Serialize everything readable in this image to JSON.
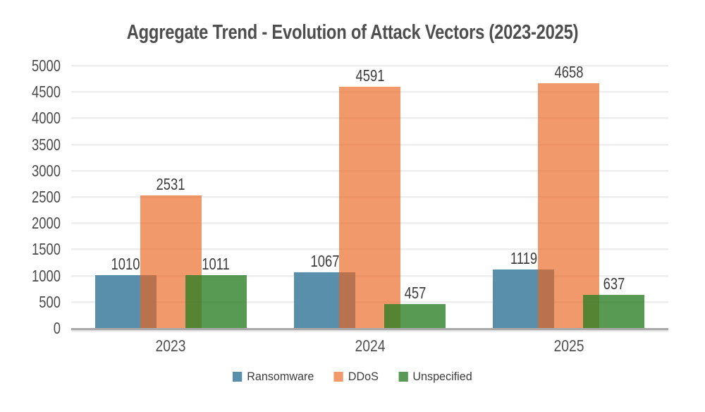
{
  "title": "Aggregate Trend - Evolution of Attack Vectors (2023-2025)",
  "chart_data": {
    "type": "bar",
    "title": "Aggregate Trend - Evolution of Attack Vectors (2023-2025)",
    "categories": [
      "2023",
      "2024",
      "2025"
    ],
    "series": [
      {
        "name": "Ransomware",
        "values": [
          1010,
          1067,
          1119
        ],
        "color_flat": "#5a8fac",
        "color_paint": "#5a8fac"
      },
      {
        "name": "DDoS",
        "values": [
          2531,
          4591,
          4658
        ],
        "color_flat": "#f29a6b",
        "color_paint": "rgba(235,98,27,0.65)"
      },
      {
        "name": "Unspecified",
        "values": [
          1011,
          457,
          637
        ],
        "color_flat": "#589a54",
        "color_paint": "rgba(41,126,36,0.78)"
      }
    ],
    "xlabel": "",
    "ylabel": "",
    "ylim": [
      0,
      5000
    ],
    "ytick_step": 500,
    "yticks": [
      "0",
      "500",
      "1000",
      "1500",
      "2000",
      "2500",
      "3000",
      "3500",
      "4000",
      "4500",
      "5000"
    ],
    "grid": "horizontal",
    "legend_position": "bottom",
    "data_labels": true,
    "bars_overlap_within_group": true
  },
  "legend": {
    "items": [
      {
        "label": "Ransomware",
        "color": "#5a8fac"
      },
      {
        "label": "DDoS",
        "color": "#f29a6b"
      },
      {
        "label": "Unspecified",
        "color": "#589a54"
      }
    ]
  },
  "colors": {
    "background": "#ffffff",
    "grid_line": "#ededed",
    "axis_line": "#a9a9a9",
    "title_text": "#4d4d4d",
    "tick_text": "#4a4a4a",
    "data_label_text": "#3c3c3c",
    "legend_text": "#3d3d3d"
  }
}
